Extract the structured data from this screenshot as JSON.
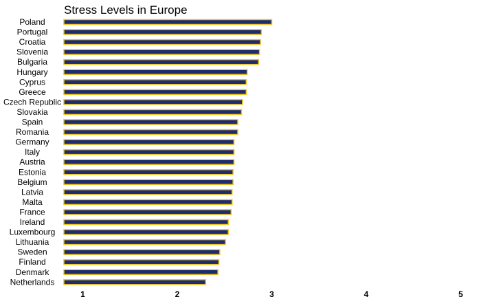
{
  "chart_data": {
    "type": "bar",
    "orientation": "horizontal",
    "title": "Stress Levels in Europe",
    "xlabel": "",
    "ylabel": "",
    "xlim": [
      0.8,
      5
    ],
    "xticks": [
      "1",
      "2",
      "3",
      "4",
      "5"
    ],
    "grid": false,
    "legend": "none",
    "categories": [
      "Poland",
      "Portugal",
      "Croatia",
      "Slovenia",
      "Bulgaria",
      "Hungary",
      "Cyprus",
      "Greece",
      "Czech Republic",
      "Slovakia",
      "Spain",
      "Romania",
      "Germany",
      "Italy",
      "Austria",
      "Estonia",
      "Belgium",
      "Latvia",
      "Malta",
      "France",
      "Ireland",
      "Luxembourg",
      "Lithuania",
      "Sweden",
      "Finland",
      "Denmark",
      "Netherlands"
    ],
    "values": [
      3.0,
      2.89,
      2.88,
      2.87,
      2.86,
      2.74,
      2.73,
      2.73,
      2.69,
      2.68,
      2.64,
      2.64,
      2.6,
      2.6,
      2.6,
      2.59,
      2.59,
      2.58,
      2.58,
      2.57,
      2.54,
      2.54,
      2.51,
      2.45,
      2.44,
      2.43,
      2.3
    ],
    "colors": {
      "bar_fill": "#1d2c6e",
      "bar_border": "#f1c21c"
    }
  }
}
